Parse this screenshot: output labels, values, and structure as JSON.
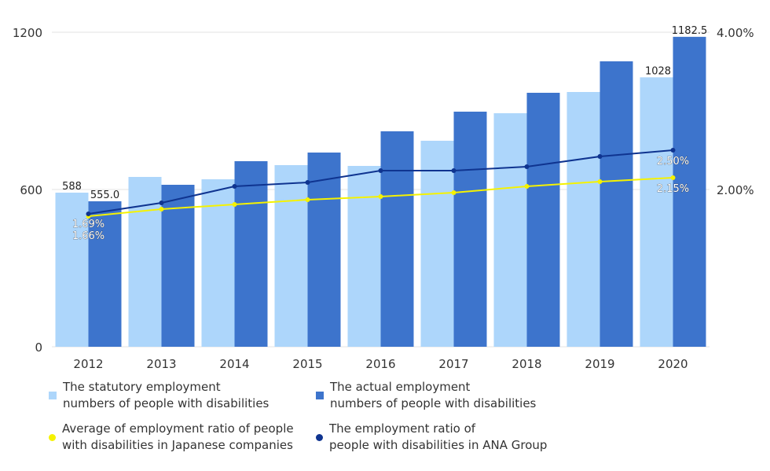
{
  "chart_data": {
    "type": "bar",
    "title": "",
    "categories": [
      "2012",
      "2013",
      "2014",
      "2015",
      "2016",
      "2017",
      "2018",
      "2019",
      "2020"
    ],
    "series": [
      {
        "name": "The statutory employment numbers of people with disabilities",
        "kind": "bar",
        "axis": "left",
        "color": "#add6fb",
        "values": [
          588,
          648,
          639,
          693,
          690,
          786,
          891,
          972,
          1028
        ]
      },
      {
        "name": "The actual employment numbers of people with disabilities",
        "kind": "bar",
        "axis": "left",
        "color": "#3d74cc",
        "values": [
          555.0,
          618,
          708,
          741,
          822,
          897,
          969,
          1089,
          1182.5
        ]
      },
      {
        "name": "Average of employment ratio of people with disabilities in Japanese companies",
        "kind": "line",
        "axis": "right",
        "color": "#f5f200",
        "values": [
          1.66,
          1.75,
          1.81,
          1.87,
          1.91,
          1.96,
          2.04,
          2.1,
          2.15
        ]
      },
      {
        "name": "The employment ratio of people with disabilities in ANA Group",
        "kind": "line",
        "axis": "right",
        "color": "#0f3490",
        "values": [
          1.69,
          1.83,
          2.04,
          2.09,
          2.24,
          2.24,
          2.29,
          2.42,
          2.5
        ]
      }
    ],
    "data_labels": [
      {
        "series": 0,
        "index": 0,
        "text": "588"
      },
      {
        "series": 1,
        "index": 0,
        "text": "555.0"
      },
      {
        "series": 0,
        "index": 8,
        "text": "1028"
      },
      {
        "series": 1,
        "index": 8,
        "text": "1182.5"
      },
      {
        "series": 3,
        "index": 0,
        "text": "1.69%"
      },
      {
        "series": 2,
        "index": 0,
        "text": "1.66%"
      },
      {
        "series": 3,
        "index": 8,
        "text": "2.50%"
      },
      {
        "series": 2,
        "index": 8,
        "text": "2.15%"
      }
    ],
    "left_axis": {
      "ticks": [
        0,
        600,
        1200
      ],
      "labels": [
        "0",
        "600",
        "1200"
      ],
      "range": [
        0,
        1200
      ]
    },
    "right_axis": {
      "ticks": [
        2.0,
        4.0
      ],
      "labels": [
        "2.00%",
        "4.00%"
      ],
      "range": [
        0,
        4.0
      ]
    },
    "xlabel": "",
    "ylabel": "",
    "grid": true,
    "legend_position": "bottom"
  },
  "legend": [
    {
      "text": "The statutory employment\nnumbers of people with disabilities",
      "color": "#add6fb",
      "shape": "square"
    },
    {
      "text": "The actual employment\nnumbers of people with disabilities",
      "color": "#3d74cc",
      "shape": "square"
    },
    {
      "text": "Average of employment ratio of people\nwith disabilities in Japanese companies",
      "color": "#f5f200",
      "shape": "dot"
    },
    {
      "text": "The employment ratio of\npeople with disabilities in ANA Group",
      "color": "#0f3490",
      "shape": "dot"
    }
  ]
}
